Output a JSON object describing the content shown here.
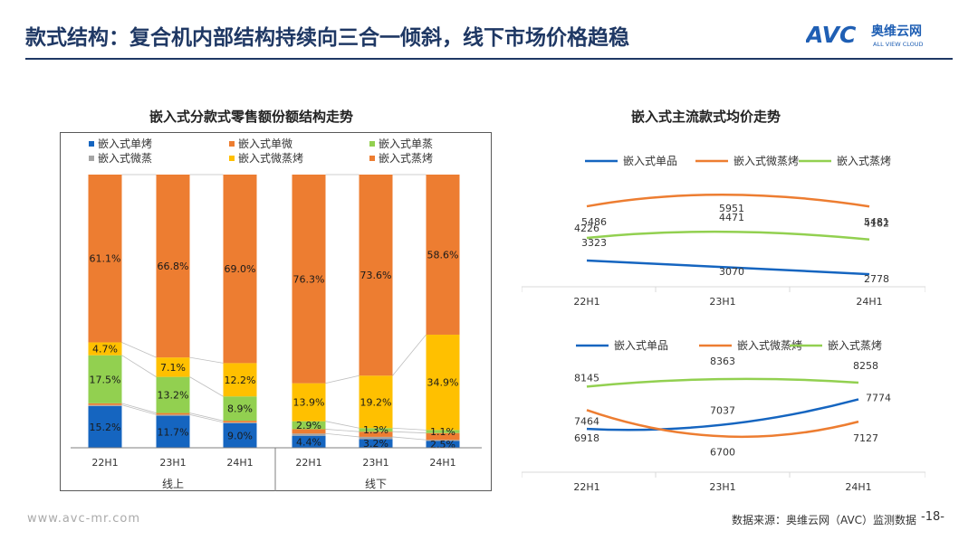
{
  "header": {
    "title": "款式结构：复合机内部结构持续向三合一倾斜，线下市场价格趋稳",
    "logo_text": "AVC",
    "logo_cn": "奥维云网",
    "logo_en": "ALL VIEW CLOUD"
  },
  "footer": {
    "url": "www.avc-mr.com",
    "source": "数据来源：奥维云网（AVC）监测数据",
    "page": "-18-"
  },
  "colors": {
    "brand_navy": "#1f3864",
    "dark_blue": "#1565c0",
    "orange": "#ed7d31",
    "green": "#92d050",
    "gray": "#a5a5a5",
    "yellow": "#ffc000"
  },
  "chart_data": [
    {
      "type": "bar",
      "stacked": true,
      "normalized": true,
      "title": "嵌入式分款式零售额份额结构走势",
      "categories": [
        "22H1",
        "23H1",
        "24H1",
        "22H1",
        "23H1",
        "24H1"
      ],
      "groups": [
        {
          "label": "线上",
          "categories": [
            "22H1",
            "23H1",
            "24H1"
          ]
        },
        {
          "label": "线下",
          "categories": [
            "22H1",
            "23H1",
            "24H1"
          ]
        }
      ],
      "legend_placement": "top",
      "legend_order": [
        "嵌入式单烤",
        "嵌入式单微",
        "嵌入式单蒸",
        "嵌入式微蒸",
        "嵌入式微蒸烤",
        "嵌入式蒸烤"
      ],
      "series": [
        {
          "name": "嵌入式单烤",
          "color": "#1565c0",
          "values": [
            15.2,
            11.7,
            9.0,
            4.4,
            3.2,
            2.5
          ],
          "labels": [
            "15.2%",
            "11.7%",
            "9.0%",
            "4.4%",
            "3.2%",
            "2.5%"
          ]
        },
        {
          "name": "嵌入式微蒸",
          "color": "#a5a5a5",
          "values": [
            0.4,
            0.4,
            0.3,
            0.8,
            0.8,
            0.4
          ],
          "labels": [
            "",
            "",
            "",
            "",
            "",
            ""
          ]
        },
        {
          "name": "嵌入式单微",
          "color": "#ed7d31",
          "values": [
            0.6,
            0.6,
            0.6,
            1.6,
            1.9,
            2.5
          ],
          "labels": [
            "",
            "",
            "",
            "",
            "",
            ""
          ]
        },
        {
          "name": "嵌入式单蒸",
          "color": "#92d050",
          "values": [
            17.5,
            13.2,
            8.9,
            2.9,
            1.3,
            1.1
          ],
          "labels": [
            "17.5%",
            "13.2%",
            "8.9%",
            "2.9%",
            "1.3%",
            "1.1%"
          ]
        },
        {
          "name": "嵌入式微蒸烤",
          "color": "#ffc000",
          "values": [
            4.7,
            7.1,
            12.2,
            13.9,
            19.2,
            34.9
          ],
          "labels": [
            "4.7%",
            "7.1%",
            "12.2%",
            "13.9%",
            "19.2%",
            "34.9%"
          ]
        },
        {
          "name": "嵌入式蒸烤",
          "color": "#ed7d31",
          "values": [
            61.1,
            66.8,
            69.0,
            76.3,
            73.6,
            58.6
          ],
          "labels": [
            "61.1%",
            "66.8%",
            "69.0%",
            "76.3%",
            "73.6%",
            "58.6%"
          ]
        }
      ]
    },
    {
      "type": "line",
      "title": "嵌入式主流款式均价走势",
      "x": [
        "22H1",
        "23H1",
        "24H1"
      ],
      "legend_placement": "top",
      "ylim": [
        2600,
        6500
      ],
      "series": [
        {
          "name": "嵌入式单品",
          "color": "#1565c0",
          "values": [
            3323,
            3070,
            2778
          ]
        },
        {
          "name": "嵌入式微蒸烤",
          "color": "#ed7d31",
          "values": [
            5486,
            5951,
            5481
          ]
        },
        {
          "name": "嵌入式蒸烤",
          "color": "#92d050",
          "values": [
            4226,
            4471,
            4162
          ]
        }
      ]
    },
    {
      "type": "line",
      "x": [
        "22H1",
        "23H1",
        "24H1"
      ],
      "legend_placement": "top",
      "ylim": [
        6500,
        8600
      ],
      "series": [
        {
          "name": "嵌入式单品",
          "color": "#1565c0",
          "values": [
            6918,
            7037,
            7774
          ]
        },
        {
          "name": "嵌入式微蒸烤",
          "color": "#ed7d31",
          "values": [
            7464,
            6700,
            7127
          ]
        },
        {
          "name": "嵌入式蒸烤",
          "color": "#92d050",
          "values": [
            8145,
            8363,
            8258
          ]
        }
      ]
    }
  ]
}
